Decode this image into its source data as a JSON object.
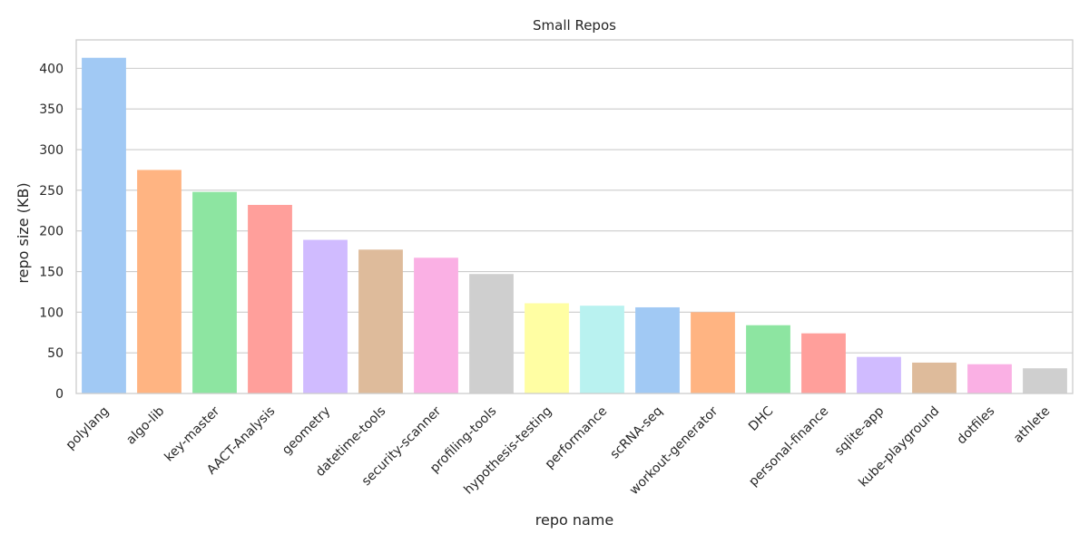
{
  "chart_data": {
    "type": "bar",
    "title": "Small Repos",
    "xlabel": "repo name",
    "ylabel": "repo size (KB)",
    "ylim": [
      0,
      435
    ],
    "yticks": [
      0,
      50,
      100,
      150,
      200,
      250,
      300,
      350,
      400
    ],
    "grid": "horizontal",
    "categories": [
      "polylang",
      "algo-lib",
      "key-master",
      "AACT-Analysis",
      "geometry",
      "datetime-tools",
      "security-scanner",
      "profiling-tools",
      "hypothesis-testing",
      "performance",
      "scRNA-seq",
      "workout-generator",
      "DHC",
      "personal-finance",
      "sqlite-app",
      "kube-playground",
      "dotfiles",
      "athlete"
    ],
    "values": [
      413,
      275,
      248,
      232,
      189,
      177,
      167,
      147,
      111,
      108,
      106,
      100,
      84,
      74,
      45,
      38,
      36,
      31
    ],
    "colors": [
      "#a1c9f4",
      "#ffb482",
      "#8de5a1",
      "#ff9f9b",
      "#d0bbff",
      "#debb9b",
      "#fab0e4",
      "#cfcfcf",
      "#fffea3",
      "#b9f2f0",
      "#a1c9f4",
      "#ffb482",
      "#8de5a1",
      "#ff9f9b",
      "#d0bbff",
      "#debb9b",
      "#fab0e4",
      "#cfcfcf"
    ]
  }
}
